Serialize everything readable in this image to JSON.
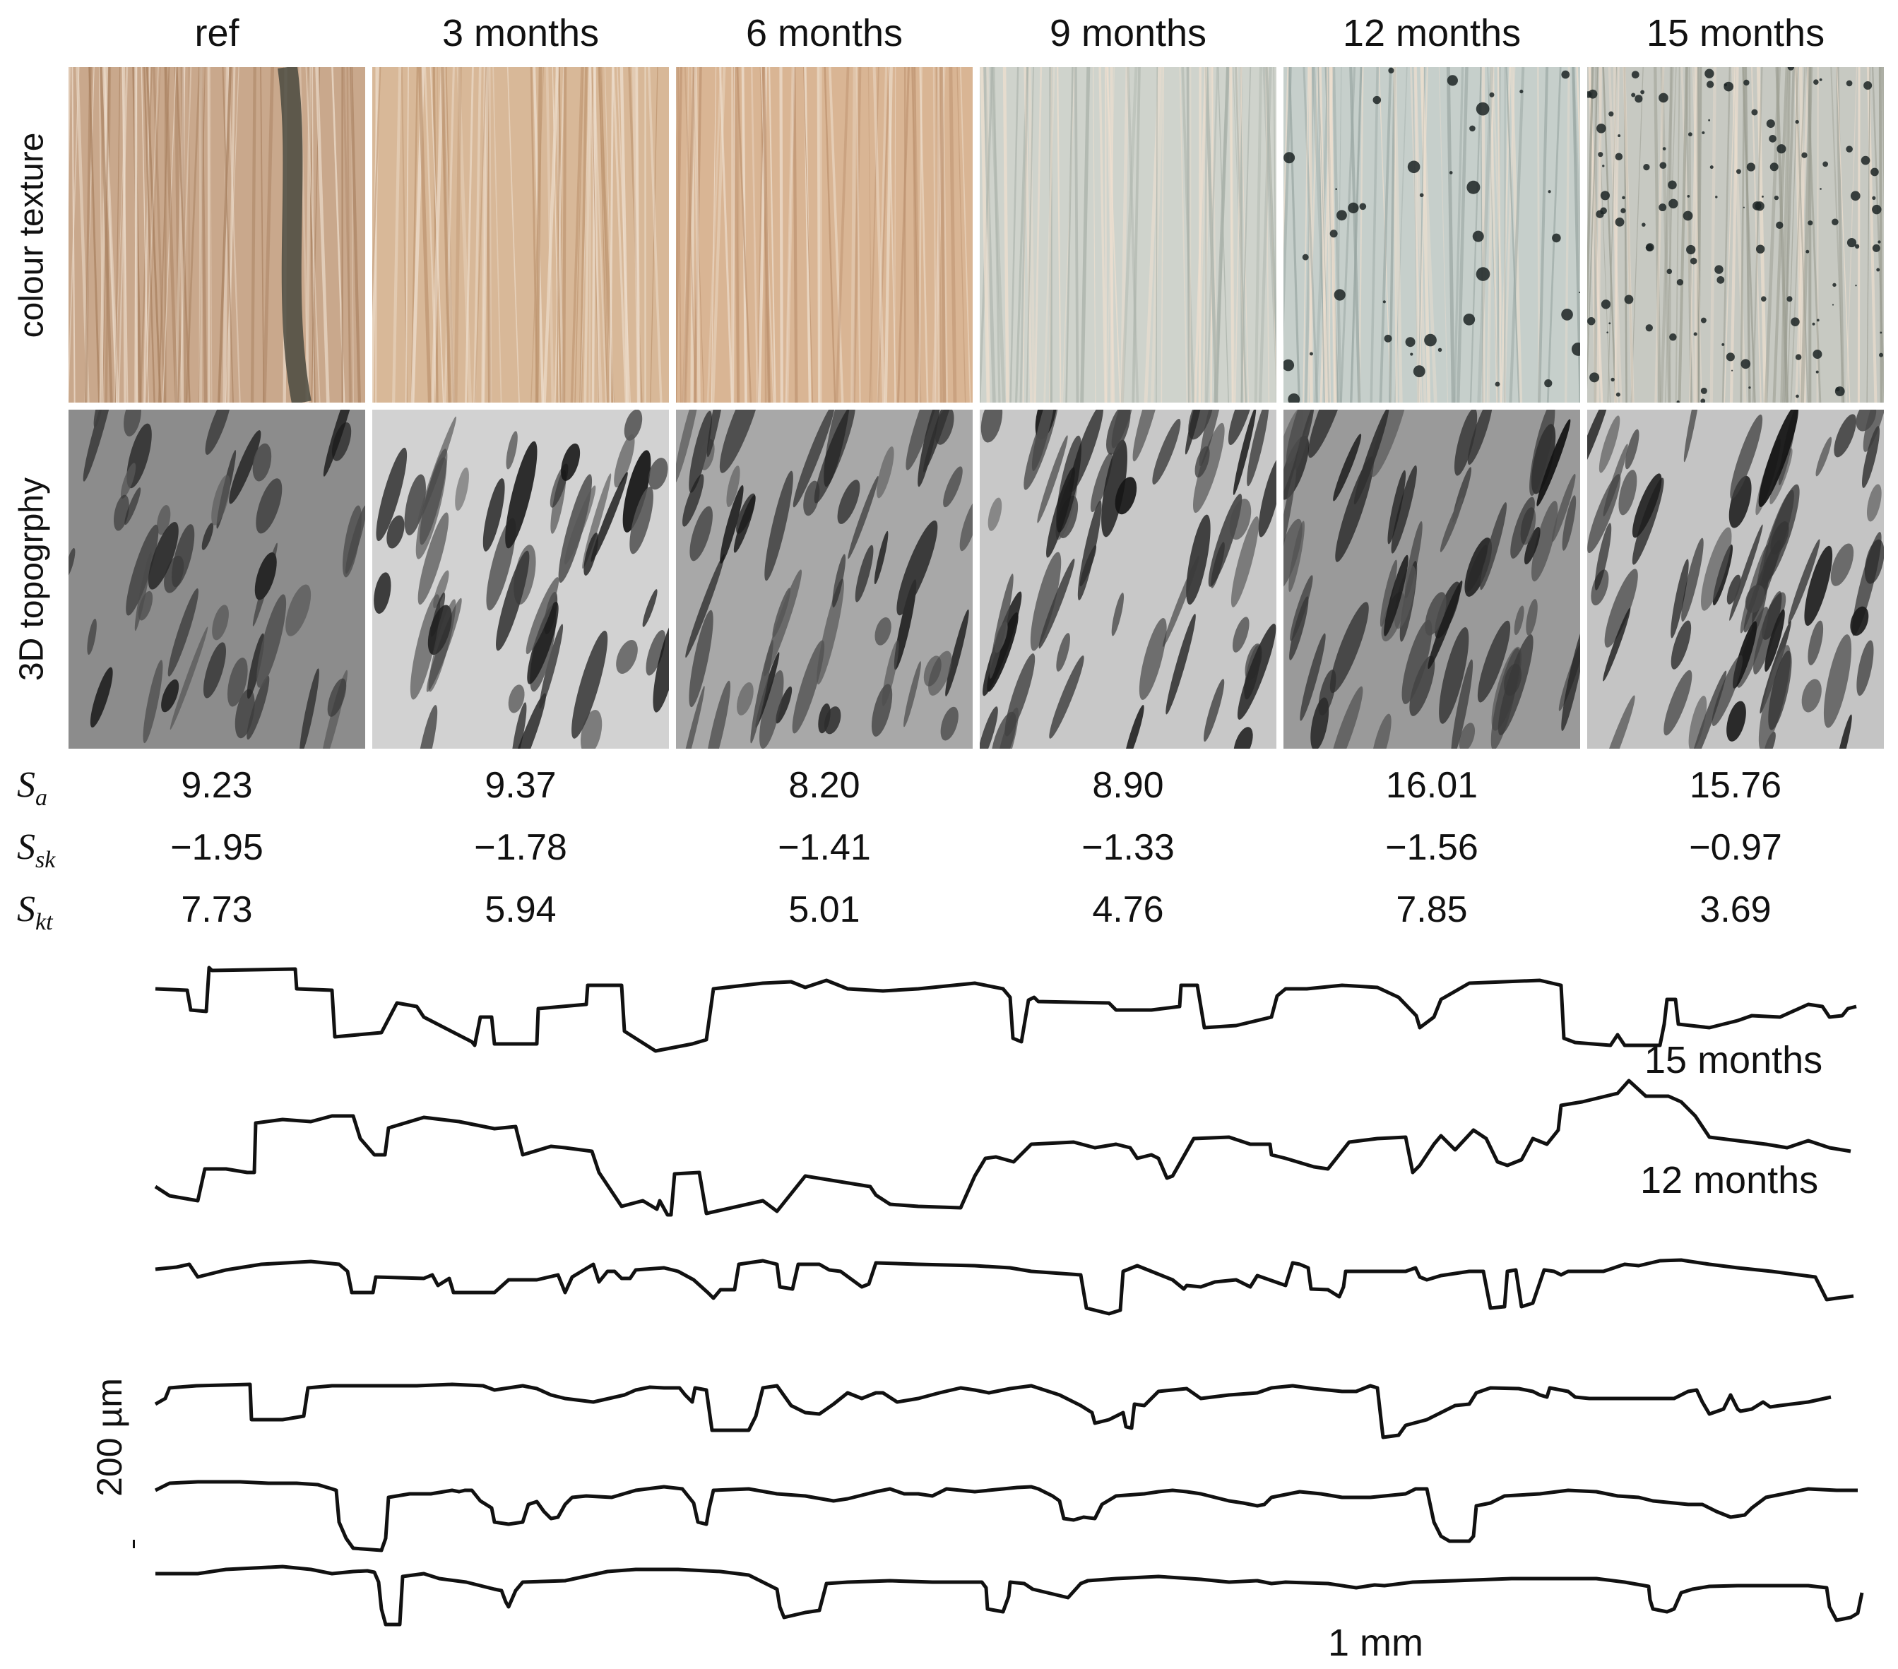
{
  "columns": [
    "ref",
    "3 months",
    "6 months",
    "9 months",
    "12 months",
    "15 months"
  ],
  "row_labels": {
    "colour": "colour texture",
    "topography": "3D topogrphy"
  },
  "metrics": [
    {
      "name": "S",
      "sub": "a",
      "values": [
        "9.23",
        "9.37",
        "8.20",
        "8.90",
        "16.01",
        "15.76"
      ]
    },
    {
      "name": "S",
      "sub": "sk",
      "values": [
        "−1.95",
        "−1.78",
        "−1.41",
        "−1.33",
        "−1.56",
        "−0.97"
      ]
    },
    {
      "name": "S",
      "sub": "kt",
      "values": [
        "7.73",
        "5.94",
        "5.01",
        "4.76",
        "7.85",
        "3.69"
      ]
    }
  ],
  "profile_labels": [
    "15 months",
    "12 months"
  ],
  "scale_bars": {
    "vertical": "200 µm",
    "horizontal": "1 mm"
  },
  "colors": {
    "wood_light": "#d9b79a",
    "wood_dark": "#b98b66",
    "weathered": "#cfd6d0",
    "topo_light": "#e6e6e6",
    "topo_dark": "#2a2a2a",
    "profile_line": "#111111"
  }
}
